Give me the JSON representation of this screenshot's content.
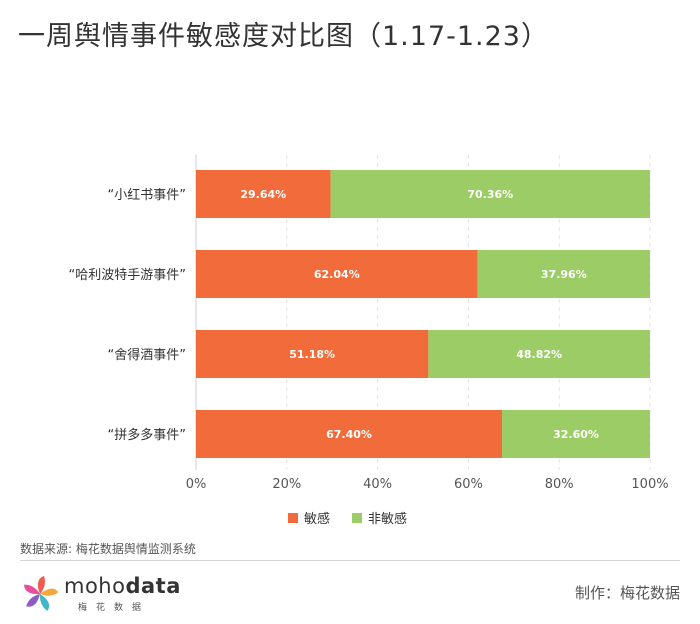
{
  "header": {
    "title": "一周舆情事件敏感度对比图（1.17-1.23）"
  },
  "footer": {
    "source": "数据来源: 梅花数据舆情监测系统",
    "logo_text_regular": "moho",
    "logo_text_bold": "data",
    "logo_subtitle": "梅花数据",
    "credit": "制作：梅花数据"
  },
  "colors": {
    "sensitive": "#f26b3a",
    "non_sensitive": "#9ccc65"
  },
  "chart_data": {
    "type": "bar",
    "orientation": "horizontal",
    "stacked": true,
    "categories": [
      "“小红书事件”",
      "“哈利波特手游事件”",
      "“舍得酒事件”",
      "“拼多多事件”"
    ],
    "series": [
      {
        "name": "敏感",
        "values": [
          29.64,
          62.04,
          51.18,
          67.4
        ],
        "labels": [
          "29.64%",
          "62.04%",
          "51.18%",
          "67.40%"
        ]
      },
      {
        "name": "非敏感",
        "values": [
          70.36,
          37.96,
          48.82,
          32.6
        ],
        "labels": [
          "70.36%",
          "37.96%",
          "48.82%",
          "32.60%"
        ]
      }
    ],
    "xlim": [
      0,
      100
    ],
    "xticks": [
      "0%",
      "20%",
      "40%",
      "60%",
      "80%",
      "100%"
    ],
    "grid": true,
    "legend": "bottom"
  }
}
